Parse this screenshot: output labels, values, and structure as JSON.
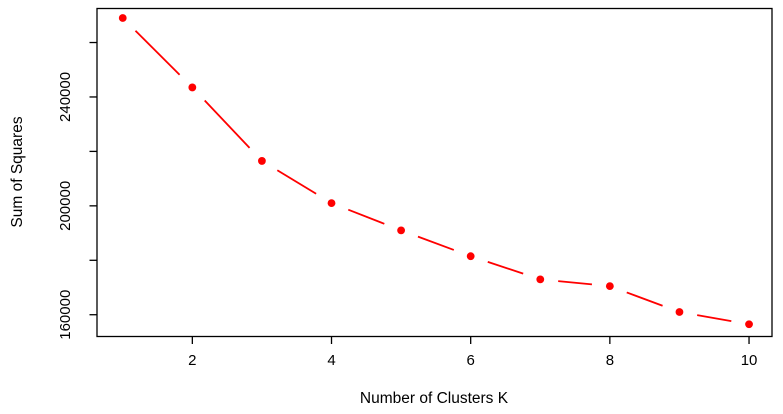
{
  "chart_data": {
    "type": "line",
    "title": "",
    "xlabel": "Number of Clusters K",
    "ylabel": "Sum of Squares",
    "x": [
      1,
      2,
      3,
      4,
      5,
      6,
      7,
      8,
      9,
      10
    ],
    "values": [
      269000,
      243500,
      216500,
      201000,
      191000,
      181500,
      173000,
      170500,
      161000,
      156500
    ],
    "x_ticks": [
      2,
      4,
      6,
      8,
      10
    ],
    "x_tick_labels": [
      "2",
      "4",
      "6",
      "8",
      "10"
    ],
    "y_ticks": [
      160000,
      180000,
      200000,
      220000,
      240000,
      260000
    ],
    "y_tick_labels": [
      "160000",
      "",
      "200000",
      "",
      "240000",
      ""
    ],
    "xlim": [
      0.63,
      10.33
    ],
    "ylim": [
      152000,
      272500
    ],
    "grid": false,
    "legend": "none",
    "marker": "filled-circle",
    "line_style": "dashed",
    "point_color": "#FF0000",
    "line_color": "#FF0000",
    "axis_color": "#000000"
  }
}
